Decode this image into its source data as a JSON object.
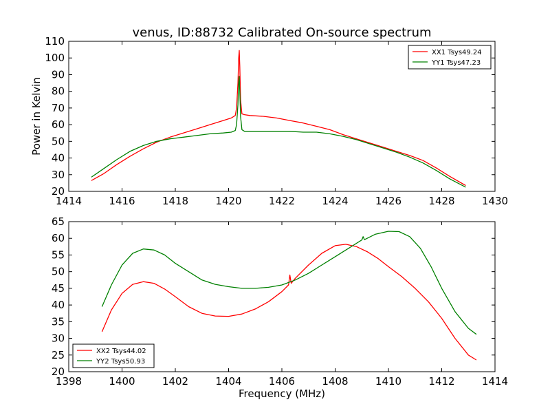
{
  "figure": {
    "title": "venus, ID:88732 Calibrated On-source spectrum",
    "xlabel": "Frequency (MHz)"
  },
  "chart_data": [
    {
      "type": "line",
      "title": "venus, ID:88732 Calibrated On-source spectrum",
      "xlabel": "",
      "ylabel": "Power in Kelvin",
      "xlim": [
        1414,
        1430
      ],
      "ylim": [
        20,
        110
      ],
      "xticks": [
        1414,
        1416,
        1418,
        1420,
        1422,
        1424,
        1426,
        1428,
        1430
      ],
      "yticks": [
        20,
        30,
        40,
        50,
        60,
        70,
        80,
        90,
        100,
        110
      ],
      "grid": false,
      "legend_position": "top-right",
      "series": [
        {
          "name": "XX1 Tsys49.24",
          "color": "#ff0000",
          "x": [
            1414.85,
            1415.3,
            1415.8,
            1416.3,
            1416.8,
            1417.3,
            1417.8,
            1418.3,
            1418.8,
            1419.3,
            1419.8,
            1420.1,
            1420.25,
            1420.3,
            1420.35,
            1420.38,
            1420.4,
            1420.42,
            1420.45,
            1420.5,
            1420.6,
            1420.8,
            1421.3,
            1421.8,
            1422.3,
            1422.8,
            1423.3,
            1423.8,
            1424.3,
            1424.8,
            1425.3,
            1425.8,
            1426.3,
            1426.8,
            1427.3,
            1427.8,
            1428.3,
            1428.9
          ],
          "values": [
            26.5,
            30.5,
            36,
            41,
            45.5,
            49.5,
            52.5,
            55,
            57.5,
            60,
            62.5,
            64,
            65.5,
            70,
            85,
            100,
            104.5,
            95,
            75,
            66.5,
            66,
            65.5,
            65,
            64,
            62.5,
            61,
            59,
            57,
            54,
            51.5,
            49,
            46.5,
            44,
            41.5,
            38.5,
            34,
            29,
            23.5
          ]
        },
        {
          "name": "YY1 Tsys47.23",
          "color": "#008000",
          "x": [
            1414.85,
            1415.3,
            1415.8,
            1416.3,
            1416.8,
            1417.3,
            1417.8,
            1418.3,
            1418.8,
            1419.3,
            1419.8,
            1420.1,
            1420.25,
            1420.3,
            1420.35,
            1420.38,
            1420.4,
            1420.42,
            1420.45,
            1420.5,
            1420.6,
            1420.8,
            1421.3,
            1421.8,
            1422.3,
            1422.8,
            1423.3,
            1423.8,
            1424.3,
            1424.8,
            1425.3,
            1425.8,
            1426.3,
            1426.8,
            1427.3,
            1427.8,
            1428.3,
            1428.9
          ],
          "values": [
            28.5,
            33.5,
            39,
            44,
            47.5,
            50,
            51.5,
            52.5,
            53.5,
            54.5,
            55,
            55.5,
            56.5,
            60,
            72,
            85,
            89,
            80,
            65,
            57,
            56,
            56,
            56,
            56,
            56,
            55.5,
            55.5,
            54.5,
            53,
            51,
            48.5,
            46,
            43.5,
            40.5,
            37,
            32.5,
            27.5,
            22.5
          ]
        }
      ]
    },
    {
      "type": "line",
      "title": "",
      "xlabel": "Frequency (MHz)",
      "ylabel": "",
      "xlim": [
        1398,
        1414
      ],
      "ylim": [
        20,
        65
      ],
      "xticks": [
        1398,
        1400,
        1402,
        1404,
        1406,
        1408,
        1410,
        1412,
        1414
      ],
      "yticks": [
        20,
        25,
        30,
        35,
        40,
        45,
        50,
        55,
        60,
        65
      ],
      "grid": false,
      "legend_position": "bottom-left",
      "series": [
        {
          "name": "XX2 Tsys44.02",
          "color": "#ff0000",
          "x": [
            1399.25,
            1399.6,
            1400.0,
            1400.4,
            1400.8,
            1401.2,
            1401.6,
            1402.0,
            1402.5,
            1403.0,
            1403.5,
            1404.0,
            1404.5,
            1405.0,
            1405.5,
            1406.0,
            1406.25,
            1406.3,
            1406.35,
            1406.5,
            1407.0,
            1407.5,
            1408.0,
            1408.4,
            1408.8,
            1409.2,
            1409.6,
            1410.0,
            1410.5,
            1411.0,
            1411.5,
            1412.0,
            1412.5,
            1413.0,
            1413.3
          ],
          "values": [
            32,
            38.5,
            43.5,
            46.2,
            47,
            46.5,
            44.8,
            42.5,
            39.5,
            37.5,
            36.7,
            36.6,
            37.3,
            38.8,
            41,
            44,
            46,
            49,
            46.5,
            48,
            52,
            55.5,
            57.8,
            58.2,
            57.5,
            56,
            54,
            51.5,
            48.5,
            45,
            41,
            36,
            30,
            25,
            23.5
          ]
        },
        {
          "name": "YY2 Tsys50.93",
          "color": "#008000",
          "x": [
            1399.25,
            1399.6,
            1400.0,
            1400.4,
            1400.8,
            1401.2,
            1401.6,
            1402.0,
            1402.5,
            1403.0,
            1403.5,
            1404.0,
            1404.5,
            1405.0,
            1405.5,
            1406.0,
            1406.5,
            1407.0,
            1407.5,
            1408.0,
            1408.5,
            1409.0,
            1409.05,
            1409.1,
            1409.5,
            1410.0,
            1410.4,
            1410.8,
            1411.2,
            1411.6,
            1412.0,
            1412.5,
            1413.0,
            1413.3
          ],
          "values": [
            39.5,
            46,
            52,
            55.5,
            56.8,
            56.5,
            55,
            52.5,
            50,
            47.5,
            46.2,
            45.5,
            45,
            45,
            45.3,
            46,
            47.5,
            49.5,
            52,
            54.5,
            57,
            59.5,
            60.5,
            59.6,
            61.2,
            62.1,
            62,
            60.5,
            57,
            51.5,
            45,
            38,
            33,
            31.2
          ]
        }
      ]
    }
  ]
}
